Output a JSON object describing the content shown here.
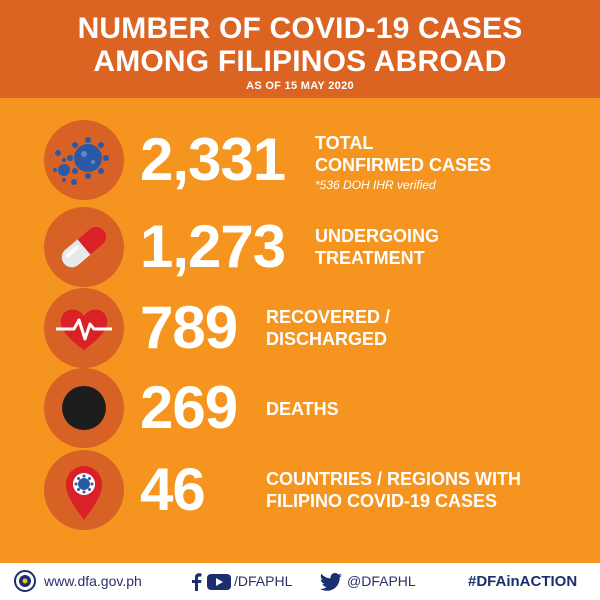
{
  "header": {
    "title_line1": "NUMBER OF COVID-19 CASES",
    "title_line2": "AMONG FILIPINOS ABROAD",
    "subtitle": "AS OF 15 MAY 2020"
  },
  "stats": [
    {
      "icon": "virus-icon",
      "value": "2,331",
      "label_line1": "TOTAL",
      "label_line2": "CONFIRMED CASES",
      "note": "*536 DOH IHR verified"
    },
    {
      "icon": "capsule-icon",
      "value": "1,273",
      "label_line1": "UNDERGOING",
      "label_line2": "TREATMENT"
    },
    {
      "icon": "heartbeat-icon",
      "value": "789",
      "label_line1": "RECOVERED /",
      "label_line2": "DISCHARGED"
    },
    {
      "icon": "black-dot-icon",
      "value": "269",
      "label_line1": "DEATHS"
    },
    {
      "icon": "location-pin-virus-icon",
      "value": "46",
      "label_line1": "COUNTRIES / REGIONS WITH",
      "label_line2": "FILIPINO COVID-19 CASES"
    }
  ],
  "footer": {
    "website": "www.dfa.gov.ph",
    "facebook_youtube_handle": "/DFAPHL",
    "twitter_handle": "@DFAPHL",
    "hashtag": "#DFAinACTION"
  },
  "colors": {
    "background": "#f5941e",
    "header": "#db6423",
    "icon_circle": "#d86225",
    "footer_text": "#1b2f6e"
  }
}
